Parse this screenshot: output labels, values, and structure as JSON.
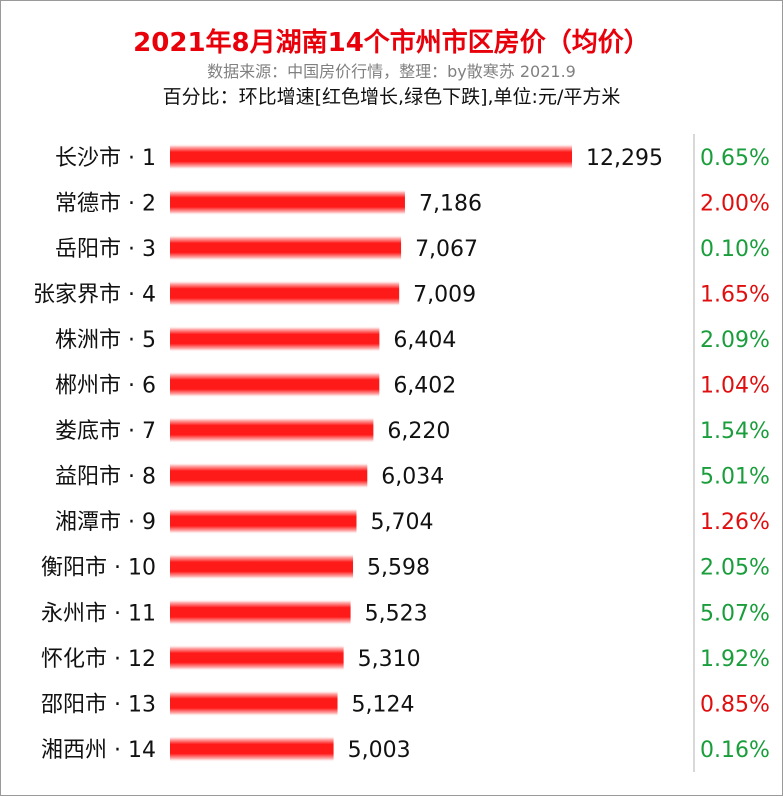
{
  "header": {
    "title": "2021年8月湖南14个市州市区房价（均价）",
    "subtitle": "数据来源：中国房价行情，整理：by散寒苏 2021.9",
    "note": "百分比：环比增速[红色增长,绿色下跌],单位:元/平方米"
  },
  "colors": {
    "title": "#e8000b",
    "bar": "#ff1a1a",
    "rise": "#e00f0f",
    "fall": "#1a9e3c",
    "divider": "#b0b0b0"
  },
  "chart_data": {
    "type": "bar",
    "orientation": "horizontal",
    "title": "2021年8月湖南14个市州市区房价（均价）",
    "unit": "元/平方米",
    "categories": [
      "长沙市 · 1",
      "常德市 · 2",
      "岳阳市 · 3",
      "张家界市 · 4",
      "株洲市 · 5",
      "郴州市 · 6",
      "娄底市 · 7",
      "益阳市 · 8",
      "湘潭市 · 9",
      "衡阳市 · 10",
      "永州市 · 11",
      "怀化市 · 12",
      "邵阳市 · 13",
      "湘西州 · 14"
    ],
    "values": [
      12295,
      7186,
      7067,
      7009,
      6404,
      6402,
      6220,
      6034,
      5704,
      5598,
      5523,
      5310,
      5124,
      5003
    ],
    "value_labels": [
      "12,295",
      "7,186",
      "7,067",
      "7,009",
      "6,404",
      "6,402",
      "6,220",
      "6,034",
      "5,704",
      "5,598",
      "5,523",
      "5,310",
      "5,124",
      "5,003"
    ],
    "change_pct": [
      "0.65%",
      "2.00%",
      "0.10%",
      "1.65%",
      "2.09%",
      "1.04%",
      "1.54%",
      "5.01%",
      "1.26%",
      "2.05%",
      "5.07%",
      "1.92%",
      "0.85%",
      "0.16%"
    ],
    "change_direction": [
      "fall",
      "rise",
      "fall",
      "rise",
      "fall",
      "rise",
      "fall",
      "fall",
      "rise",
      "fall",
      "fall",
      "fall",
      "rise",
      "fall"
    ],
    "grid": false,
    "legend": "none"
  }
}
